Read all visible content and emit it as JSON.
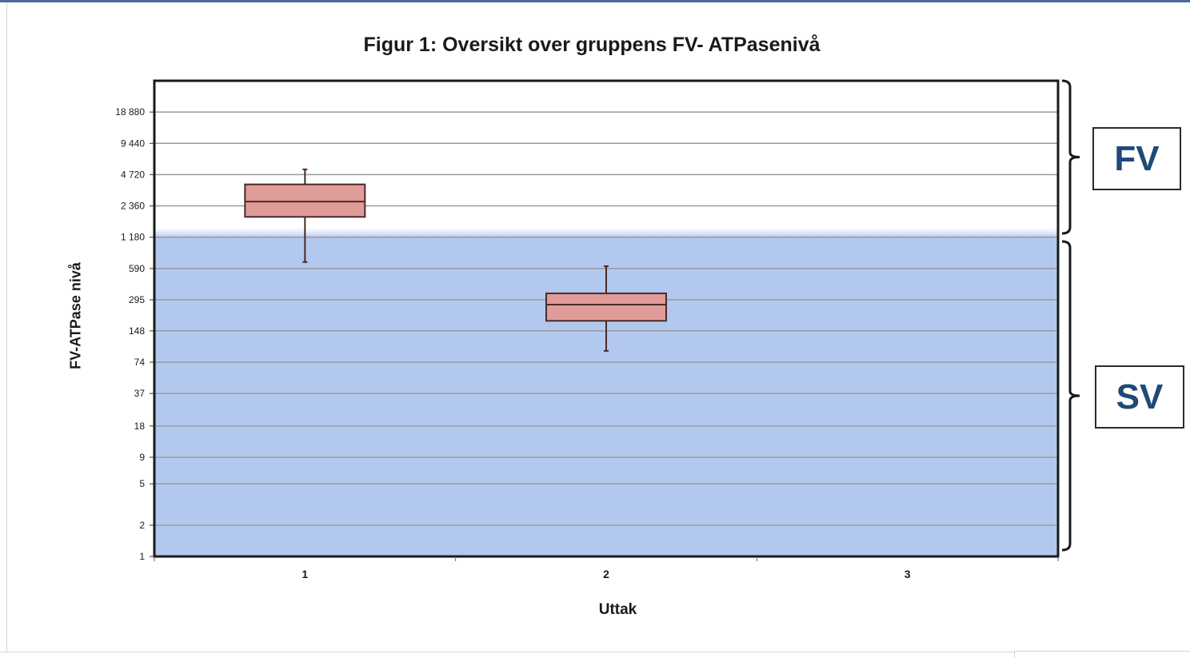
{
  "chart_data": {
    "type": "box",
    "title": "Figur 1: Oversikt over gruppens FV- ATPasenivå",
    "xlabel": "Uttak",
    "ylabel": "FV-ATPase nivå",
    "y_scale": "log2",
    "y_ticks": [
      "1",
      "2",
      "5",
      "9",
      "18",
      "37",
      "74",
      "148",
      "295",
      "590",
      "1 180",
      "2 360",
      "4 720",
      "9 440",
      "18 880"
    ],
    "y_tick_values": [
      1,
      2,
      5,
      9,
      18,
      37,
      74,
      148,
      295,
      590,
      1180,
      2360,
      4720,
      9440,
      18880
    ],
    "ylim": [
      1,
      37760
    ],
    "categories": [
      "1",
      "2",
      "3"
    ],
    "boxes": [
      {
        "category": "1",
        "whisker_low": 680,
        "q1": 1850,
        "median": 2600,
        "q3": 3800,
        "whisker_high": 5300
      },
      {
        "category": "2",
        "whisker_low": 95,
        "q1": 185,
        "median": 265,
        "q3": 340,
        "whisker_high": 620
      },
      {
        "category": "3"
      }
    ],
    "grid": true,
    "shaded_region": {
      "from": 1,
      "to": 1180,
      "color": "#b3c8ee"
    },
    "box_fill": "#e09c99",
    "box_stroke": "#4a2a2a",
    "zones": [
      {
        "label": "FV",
        "from": 1180,
        "to": 37760
      },
      {
        "label": "SV",
        "from": 1,
        "to": 1180
      }
    ]
  }
}
